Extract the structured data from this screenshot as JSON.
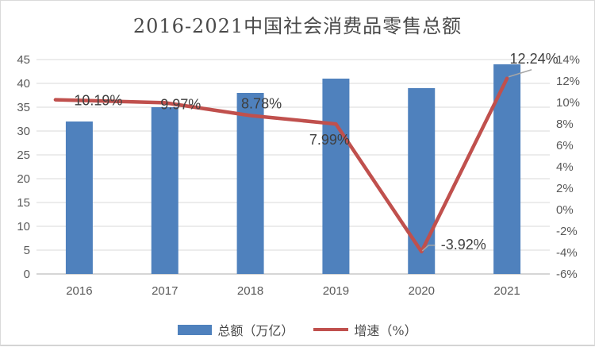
{
  "chart_data": {
    "type": "bar",
    "title": "2016-2021中国社会消费品零售总额",
    "categories": [
      "2016",
      "2017",
      "2018",
      "2019",
      "2020",
      "2021"
    ],
    "series": [
      {
        "name": "总额（万亿）",
        "type": "bar",
        "axis": "left",
        "values": [
          32,
          35,
          38,
          41,
          39,
          44
        ],
        "color": "#4F81BD"
      },
      {
        "name": "增速（%）",
        "type": "line",
        "axis": "right",
        "values": [
          10.19,
          9.97,
          8.78,
          7.99,
          -3.92,
          12.24
        ],
        "point_labels": [
          "10.19%",
          "9.97%",
          "8.78%",
          "7.99%",
          "-3.92%",
          "12.24%"
        ],
        "color": "#C0504D"
      }
    ],
    "left_axis": {
      "min": 0,
      "max": 45,
      "step": 5,
      "tick_labels": [
        "45",
        "40",
        "35",
        "30",
        "25",
        "20",
        "15",
        "10",
        "5",
        "0"
      ]
    },
    "right_axis": {
      "min": -6,
      "max": 14,
      "step": 2,
      "tick_labels": [
        "14%",
        "12%",
        "10%",
        "8%",
        "6%",
        "4%",
        "2%",
        "0%",
        "-2%",
        "-4%",
        "-6%"
      ]
    },
    "legend": {
      "position": "bottom",
      "items": [
        "总额（万亿）",
        "增速（%）"
      ]
    },
    "grid": true,
    "colors": {
      "bar": "#4F81BD",
      "line": "#C0504D",
      "gridline": "#D9D9D9",
      "axis_line": "#D6D6D6",
      "tick_text": "#595959",
      "title_text": "#4A4A4A",
      "data_label_text": "#3F3F3F",
      "leader_line": "#A6A6A6"
    }
  }
}
